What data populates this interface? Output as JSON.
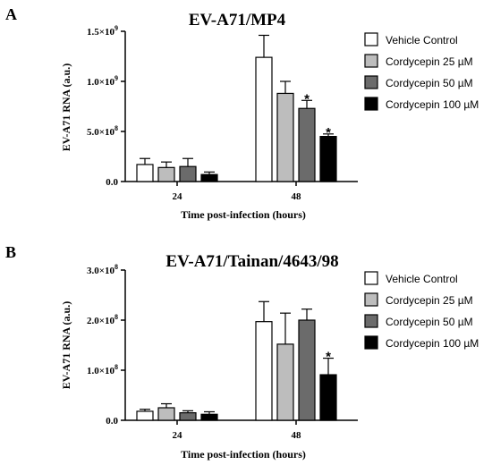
{
  "panels": [
    {
      "letter": "A",
      "title": "EV-A71/MP4",
      "ylabel": "EV-A71 RNA (a.u.)",
      "xlabel": "Time post-infection (hours)",
      "yticks": [
        {
          "value": 0,
          "mantissa": "0.0",
          "exp": ""
        },
        {
          "value": 500000000,
          "mantissa": "5.0×10",
          "exp": "8"
        },
        {
          "value": 1000000000,
          "mantissa": "1.0×10",
          "exp": "9"
        },
        {
          "value": 1500000000,
          "mantissa": "1.5×10",
          "exp": "9"
        }
      ]
    },
    {
      "letter": "B",
      "title": "EV-A71/Tainan/4643/98",
      "ylabel": "EV-A71 RNA (a.u.)",
      "xlabel": "Time post-infection (hours)",
      "yticks": [
        {
          "value": 0,
          "mantissa": "0.0",
          "exp": ""
        },
        {
          "value": 100000000,
          "mantissa": "1.0×10",
          "exp": "8"
        },
        {
          "value": 200000000,
          "mantissa": "2.0×10",
          "exp": "8"
        },
        {
          "value": 300000000,
          "mantissa": "3.0×10",
          "exp": "8"
        }
      ]
    }
  ],
  "legend": [
    {
      "label": "Vehicle Control",
      "color": "#ffffff"
    },
    {
      "label": "Cordycepin 25 µM",
      "color": "#bdbdbd"
    },
    {
      "label": "Cordycepin 50 µM",
      "color": "#6b6b6b"
    },
    {
      "label": "Cordycepin 100 µM",
      "color": "#000000"
    }
  ],
  "significance_marker": "*",
  "chart_data": [
    {
      "type": "bar",
      "title": "EV-A71/MP4",
      "xlabel": "Time post-infection (hours)",
      "ylabel": "EV-A71 RNA (a.u.)",
      "categories": [
        "24",
        "48"
      ],
      "ylim": [
        0,
        1500000000
      ],
      "grid": false,
      "legend_position": "right",
      "series": [
        {
          "name": "Vehicle Control",
          "color": "#ffffff",
          "values": [
            170000000,
            1240000000
          ],
          "errors": [
            60000000,
            220000000
          ],
          "significant": [
            false,
            false
          ]
        },
        {
          "name": "Cordycepin 25 µM",
          "color": "#bdbdbd",
          "values": [
            140000000,
            880000000
          ],
          "errors": [
            55000000,
            120000000
          ],
          "significant": [
            false,
            false
          ]
        },
        {
          "name": "Cordycepin 50 µM",
          "color": "#6b6b6b",
          "values": [
            150000000,
            730000000
          ],
          "errors": [
            80000000,
            80000000
          ],
          "significant": [
            false,
            true
          ]
        },
        {
          "name": "Cordycepin 100 µM",
          "color": "#000000",
          "values": [
            70000000,
            450000000
          ],
          "errors": [
            25000000,
            25000000
          ],
          "significant": [
            false,
            true
          ]
        }
      ]
    },
    {
      "type": "bar",
      "title": "EV-A71/Tainan/4643/98",
      "xlabel": "Time post-infection (hours)",
      "ylabel": "EV-A71 RNA (a.u.)",
      "categories": [
        "24",
        "48"
      ],
      "ylim": [
        0,
        300000000
      ],
      "grid": false,
      "legend_position": "right",
      "series": [
        {
          "name": "Vehicle Control",
          "color": "#ffffff",
          "values": [
            18000000,
            197000000
          ],
          "errors": [
            4000000,
            40000000
          ],
          "significant": [
            false,
            false
          ]
        },
        {
          "name": "Cordycepin 25 µM",
          "color": "#bdbdbd",
          "values": [
            25000000,
            152000000
          ],
          "errors": [
            8000000,
            62000000
          ],
          "significant": [
            false,
            false
          ]
        },
        {
          "name": "Cordycepin 50 µM",
          "color": "#6b6b6b",
          "values": [
            15000000,
            200000000
          ],
          "errors": [
            4000000,
            22000000
          ],
          "significant": [
            false,
            false
          ]
        },
        {
          "name": "Cordycepin 100 µM",
          "color": "#000000",
          "values": [
            12000000,
            91000000
          ],
          "errors": [
            5000000,
            33000000
          ],
          "significant": [
            false,
            true
          ]
        }
      ]
    }
  ]
}
